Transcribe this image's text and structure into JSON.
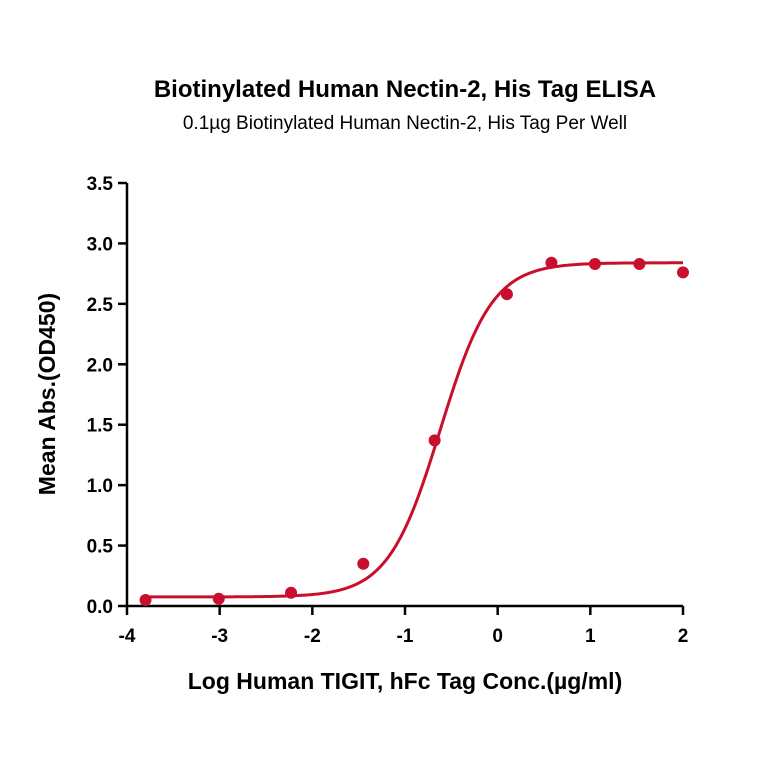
{
  "chart_data": {
    "type": "scatter",
    "title": "Biotinylated Human Nectin-2, His Tag ELISA",
    "subtitle": "0.1µg Biotinylated Human Nectin-2, His Tag Per Well",
    "xlabel": "Log Human TIGIT, hFc Tag Conc.(µg/ml)",
    "ylabel": "Mean Abs.(OD450)",
    "xlim": [
      -4,
      2
    ],
    "ylim": [
      0,
      3.5
    ],
    "xticks": [
      "-4",
      "-3",
      "-2",
      "-1",
      "0",
      "1",
      "2"
    ],
    "yticks": [
      "0.0",
      "0.5",
      "1.0",
      "1.5",
      "2.0",
      "2.5",
      "3.0",
      "3.5"
    ],
    "grid": false,
    "color": "#c8102e",
    "series": [
      {
        "points": [
          {
            "x": -3.8,
            "y": 0.05
          },
          {
            "x": -3.01,
            "y": 0.06
          },
          {
            "x": -2.23,
            "y": 0.11
          },
          {
            "x": -1.45,
            "y": 0.35
          },
          {
            "x": -0.68,
            "y": 1.37
          },
          {
            "x": 0.1,
            "y": 2.58
          },
          {
            "x": 0.58,
            "y": 2.84
          },
          {
            "x": 1.05,
            "y": 2.83
          },
          {
            "x": 1.53,
            "y": 2.83
          },
          {
            "x": 2.0,
            "y": 2.76
          }
        ]
      }
    ]
  }
}
